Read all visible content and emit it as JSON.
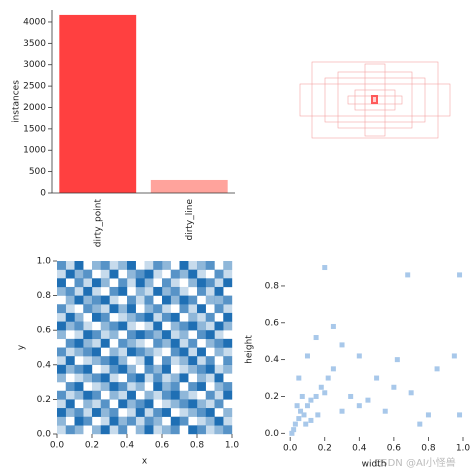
{
  "chart_data": [
    {
      "type": "bar",
      "ylabel": "instances",
      "categories": [
        "dirty_point",
        "dirty_line"
      ],
      "values": [
        4165,
        305
      ],
      "colors": [
        "#ff4040",
        "#ffa39c"
      ],
      "ylim": [
        0,
        4280
      ],
      "yticks": [
        0,
        500,
        1000,
        1500,
        2000,
        2500,
        3000,
        3500,
        4000
      ]
    },
    {
      "type": "heatmap",
      "xlabel": "x",
      "ylabel": "y",
      "color": "#1f6fb4",
      "xlim": [
        0,
        1
      ],
      "ylim": [
        0,
        1
      ],
      "xticks": [
        {
          "value": 0,
          "label": "0.0"
        },
        {
          "value": 0.2,
          "label": "0.2"
        },
        {
          "value": 0.4,
          "label": "0.4"
        },
        {
          "value": 0.6,
          "label": "0.6"
        },
        {
          "value": 0.8,
          "label": "0.8"
        },
        {
          "value": 1,
          "label": "1.0"
        }
      ],
      "yticks": [
        {
          "value": 0,
          "label": "0.0"
        },
        {
          "value": 0.2,
          "label": "0.2"
        },
        {
          "value": 0.4,
          "label": "0.4"
        },
        {
          "value": 0.6,
          "label": "0.6"
        },
        {
          "value": 0.8,
          "label": "0.8"
        },
        {
          "value": 1,
          "label": "1.0"
        }
      ],
      "z": [
        [
          3,
          1,
          4,
          0,
          2,
          3,
          1,
          2,
          4,
          0,
          1,
          3,
          2,
          0,
          4,
          1,
          2,
          3,
          0,
          2
        ],
        [
          1,
          4,
          2,
          3,
          0,
          1,
          4,
          0,
          2,
          3,
          4,
          1,
          0,
          3,
          2,
          4,
          1,
          0,
          3,
          1
        ],
        [
          4,
          0,
          3,
          1,
          4,
          2,
          0,
          3,
          1,
          4,
          2,
          0,
          3,
          1,
          0,
          2,
          4,
          3,
          1,
          4
        ],
        [
          2,
          3,
          1,
          4,
          1,
          0,
          3,
          4,
          0,
          2,
          1,
          4,
          2,
          3,
          1,
          0,
          3,
          1,
          4,
          0
        ],
        [
          0,
          2,
          4,
          2,
          3,
          4,
          1,
          0,
          3,
          1,
          3,
          0,
          4,
          2,
          4,
          3,
          0,
          2,
          2,
          3
        ],
        [
          3,
          1,
          0,
          3,
          2,
          1,
          4,
          2,
          4,
          0,
          2,
          3,
          1,
          0,
          3,
          1,
          4,
          0,
          3,
          1
        ],
        [
          1,
          4,
          2,
          0,
          4,
          3,
          0,
          1,
          2,
          3,
          4,
          1,
          3,
          4,
          0,
          2,
          1,
          3,
          0,
          4
        ],
        [
          4,
          2,
          3,
          1,
          0,
          2,
          3,
          4,
          1,
          0,
          1,
          4,
          0,
          2,
          3,
          4,
          2,
          1,
          4,
          2
        ],
        [
          2,
          0,
          1,
          4,
          3,
          1,
          2,
          0,
          3,
          4,
          3,
          2,
          4,
          1,
          2,
          0,
          3,
          4,
          1,
          0
        ],
        [
          0,
          3,
          4,
          2,
          1,
          4,
          0,
          3,
          2,
          1,
          0,
          3,
          2,
          4,
          1,
          3,
          0,
          2,
          3,
          4
        ],
        [
          3,
          1,
          2,
          3,
          4,
          0,
          2,
          1,
          4,
          3,
          2,
          1,
          0,
          3,
          4,
          1,
          4,
          0,
          2,
          1
        ],
        [
          1,
          4,
          0,
          1,
          2,
          3,
          4,
          2,
          0,
          1,
          4,
          0,
          3,
          1,
          2,
          4,
          1,
          3,
          0,
          3
        ],
        [
          4,
          2,
          3,
          4,
          0,
          1,
          3,
          4,
          2,
          0,
          3,
          2,
          4,
          0,
          1,
          2,
          3,
          4,
          1,
          2
        ],
        [
          2,
          0,
          1,
          2,
          3,
          4,
          1,
          0,
          3,
          4,
          1,
          3,
          1,
          2,
          4,
          0,
          2,
          1,
          4,
          0
        ],
        [
          0,
          3,
          4,
          0,
          1,
          2,
          4,
          3,
          1,
          2,
          0,
          4,
          2,
          3,
          0,
          3,
          4,
          0,
          2,
          3
        ],
        [
          3,
          1,
          2,
          4,
          3,
          0,
          2,
          1,
          4,
          0,
          2,
          1,
          3,
          4,
          2,
          1,
          0,
          3,
          1,
          4
        ],
        [
          1,
          4,
          0,
          2,
          1,
          3,
          0,
          4,
          2,
          3,
          4,
          0,
          1,
          2,
          3,
          4,
          2,
          1,
          3,
          0
        ],
        [
          4,
          2,
          3,
          1,
          4,
          2,
          3,
          0,
          1,
          4,
          1,
          3,
          4,
          0,
          1,
          2,
          3,
          4,
          0,
          2
        ],
        [
          2,
          0,
          4,
          3,
          0,
          1,
          4,
          2,
          3,
          1,
          3,
          2,
          0,
          4,
          3,
          0,
          1,
          2,
          4,
          1
        ],
        [
          1,
          3,
          2,
          0,
          2,
          4,
          1,
          3,
          0,
          2,
          4,
          1,
          2,
          3,
          0,
          4,
          3,
          1,
          2,
          3
        ]
      ]
    },
    {
      "type": "scatter",
      "xlabel": "width",
      "ylabel": "height",
      "color": "#a8c8ea",
      "xlim": [
        -0.03,
        1.0
      ],
      "ylim": [
        -0.02,
        0.93
      ],
      "xticks": [
        {
          "value": 0,
          "label": "0.0"
        },
        {
          "value": 0.2,
          "label": "0.2"
        },
        {
          "value": 0.4,
          "label": "0.4"
        },
        {
          "value": 0.6,
          "label": "0.6"
        },
        {
          "value": 0.8,
          "label": "0.8"
        },
        {
          "value": 1,
          "label": "1.0"
        }
      ],
      "yticks": [
        {
          "value": 0,
          "label": "0.0"
        },
        {
          "value": 0.2,
          "label": "0.2"
        },
        {
          "value": 0.4,
          "label": "0.4"
        },
        {
          "value": 0.6,
          "label": "0.6"
        },
        {
          "value": 0.8,
          "label": "0.8"
        }
      ],
      "x": [
        0.02,
        0.03,
        0.05,
        0.06,
        0.08,
        0.1,
        0.12,
        0.15,
        0.18,
        0.2,
        0.04,
        0.07,
        0.09,
        0.12,
        0.16,
        0.22,
        0.25,
        0.3,
        0.35,
        0.4,
        0.45,
        0.5,
        0.55,
        0.6,
        0.62,
        0.7,
        0.75,
        0.8,
        0.85,
        0.95,
        0.98,
        0.2,
        0.25,
        0.3,
        0.4,
        0.68,
        0.98,
        0.1,
        0.15,
        0.05,
        0.01
      ],
      "y": [
        0.02,
        0.05,
        0.08,
        0.12,
        0.1,
        0.15,
        0.18,
        0.2,
        0.25,
        0.22,
        0.15,
        0.2,
        0.05,
        0.07,
        0.1,
        0.3,
        0.35,
        0.12,
        0.2,
        0.15,
        0.18,
        0.3,
        0.12,
        0.25,
        0.4,
        0.22,
        0.05,
        0.1,
        0.35,
        0.42,
        0.1,
        0.9,
        0.58,
        0.48,
        0.42,
        0.86,
        0.86,
        0.42,
        0.52,
        0.3,
        0.0
      ]
    }
  ],
  "watermark": "CSDN @AI小怪兽"
}
